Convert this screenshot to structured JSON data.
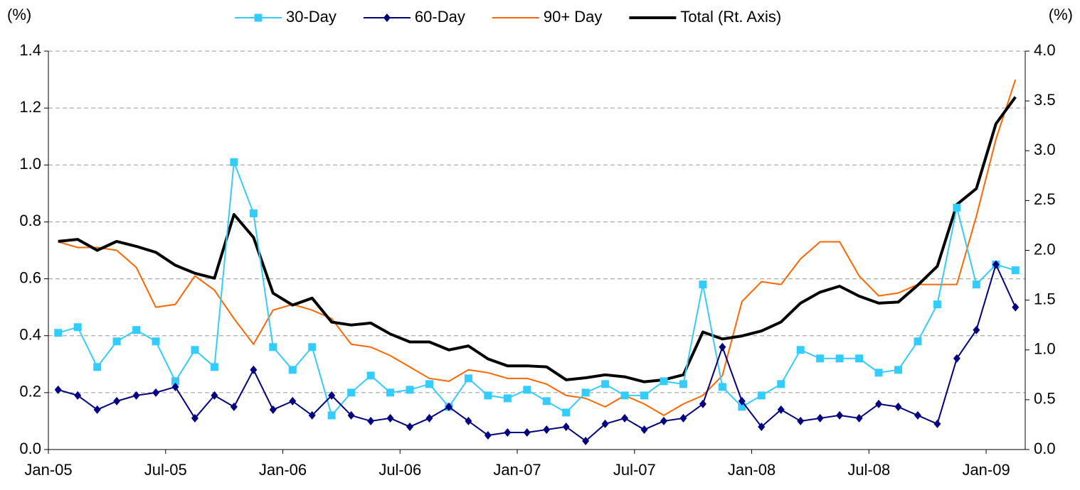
{
  "chart_data": {
    "type": "line",
    "y_unit_label": "(%)",
    "y2_unit_label": "(%)",
    "categories": [
      "Jan-05",
      null,
      null,
      null,
      null,
      null,
      "Jul-05",
      null,
      null,
      null,
      null,
      null,
      "Jan-06",
      null,
      null,
      null,
      null,
      null,
      "Jul-06",
      null,
      null,
      null,
      null,
      null,
      "Jan-07",
      null,
      null,
      null,
      null,
      null,
      "Jul-07",
      null,
      null,
      null,
      null,
      null,
      "Jan-08",
      null,
      null,
      null,
      null,
      null,
      "Jul-08",
      null,
      null,
      null,
      null,
      null,
      "Jan-09",
      null
    ],
    "ylim": [
      0,
      1.4
    ],
    "yticks": [
      {
        "value": 0,
        "label": "0.0"
      },
      0.2,
      0.4,
      0.6,
      0.8,
      {
        "value": 1,
        "label": "1.0"
      },
      1.2,
      1.4
    ],
    "y2lim": [
      0,
      4
    ],
    "y2ticks": [
      {
        "value": 0,
        "label": "0.0"
      },
      0.5,
      {
        "value": 1,
        "label": "1.0"
      },
      1.5,
      {
        "value": 2,
        "label": "2.0"
      },
      2.5,
      {
        "value": 3,
        "label": "3.0"
      },
      3.5,
      {
        "value": 4,
        "label": "4.0"
      }
    ],
    "grid": true,
    "legend": "top",
    "series": [
      {
        "name": "30-Day",
        "color": "#33ccff",
        "marker": "square",
        "values": [
          0.41,
          0.43,
          0.29,
          0.38,
          0.42,
          0.38,
          0.24,
          0.35,
          0.29,
          1.01,
          0.83,
          0.36,
          0.28,
          0.36,
          0.12,
          0.2,
          0.26,
          0.2,
          0.21,
          0.23,
          0.15,
          0.25,
          0.19,
          0.18,
          0.21,
          0.17,
          0.13,
          0.2,
          0.23,
          0.19,
          0.19,
          0.24,
          0.23,
          0.58,
          0.22,
          0.15,
          0.19,
          0.23,
          0.35,
          0.32,
          0.32,
          0.32,
          0.27,
          0.28,
          0.38,
          0.51,
          0.85,
          0.58,
          0.65,
          0.63
        ]
      },
      {
        "name": "60-Day",
        "color": "#000080",
        "marker": "diamond",
        "values": [
          0.21,
          0.19,
          0.14,
          0.17,
          0.19,
          0.2,
          0.22,
          0.11,
          0.19,
          0.15,
          0.28,
          0.14,
          0.17,
          0.12,
          0.19,
          0.12,
          0.1,
          0.11,
          0.08,
          0.11,
          0.15,
          0.1,
          0.05,
          0.06,
          0.06,
          0.07,
          0.08,
          0.03,
          0.09,
          0.11,
          0.07,
          0.1,
          0.11,
          0.16,
          0.36,
          0.17,
          0.08,
          0.14,
          0.1,
          0.11,
          0.12,
          0.11,
          0.16,
          0.15,
          0.12,
          0.09,
          0.32,
          0.42,
          0.65,
          0.5
        ]
      },
      {
        "name": "90+ Day",
        "color": "#ff6600",
        "values": [
          0.73,
          0.71,
          0.71,
          0.7,
          0.64,
          0.5,
          0.51,
          0.61,
          0.56,
          0.46,
          0.37,
          0.49,
          0.51,
          0.49,
          0.46,
          0.37,
          0.36,
          0.33,
          0.29,
          0.25,
          0.24,
          0.28,
          0.27,
          0.25,
          0.25,
          0.23,
          0.19,
          0.18,
          0.15,
          0.19,
          0.16,
          0.12,
          0.16,
          0.19,
          0.26,
          0.52,
          0.59,
          0.58,
          0.67,
          0.73,
          0.73,
          0.61,
          0.54,
          0.55,
          0.58,
          0.58,
          0.58,
          0.82,
          1.09,
          1.3
        ]
      },
      {
        "name": "Total (Rt. Axis)",
        "color": "#000000",
        "axis": "y2",
        "width": 4,
        "values": [
          2.09,
          2.11,
          2.0,
          2.09,
          2.04,
          1.98,
          1.85,
          1.77,
          1.72,
          2.36,
          2.13,
          1.57,
          1.45,
          1.52,
          1.28,
          1.25,
          1.27,
          1.16,
          1.08,
          1.08,
          1.0,
          1.04,
          0.91,
          0.84,
          0.84,
          0.83,
          0.7,
          0.72,
          0.75,
          0.73,
          0.68,
          0.7,
          0.75,
          1.18,
          1.11,
          1.14,
          1.19,
          1.28,
          1.47,
          1.58,
          1.64,
          1.54,
          1.47,
          1.48,
          1.65,
          1.84,
          2.46,
          2.62,
          3.27,
          3.54
        ]
      }
    ]
  }
}
